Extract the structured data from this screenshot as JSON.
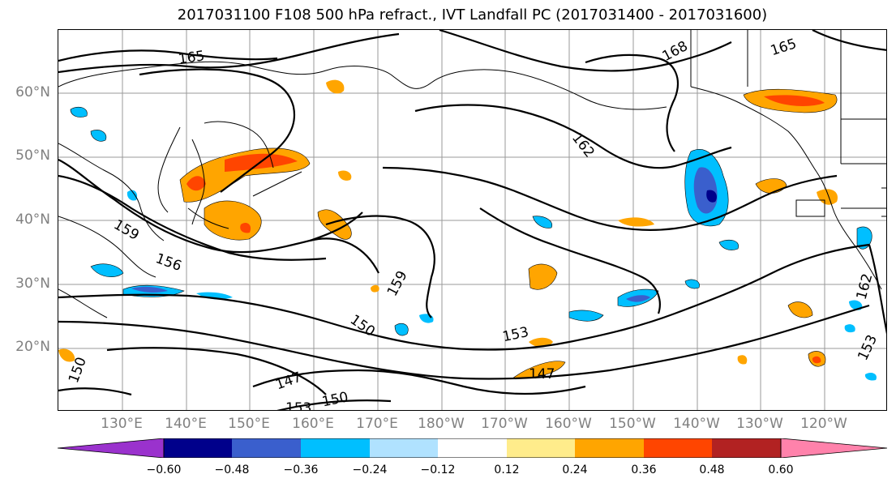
{
  "title": "2017031100 F108 500 hPa refract., IVT Landfall PC (2017031400 - 2017031600)",
  "lat_labels": [
    "60°N",
    "50°N",
    "40°N",
    "30°N",
    "20°N"
  ],
  "lon_labels": [
    "130°E",
    "140°E",
    "150°E",
    "160°E",
    "170°E",
    "180°W",
    "170°W",
    "160°W",
    "150°W",
    "140°W",
    "130°W",
    "120°W"
  ],
  "contour_labels": [
    "165",
    "168",
    "165",
    "162",
    "159",
    "156",
    "159",
    "150",
    "153",
    "147",
    "147",
    "150",
    "153",
    "153",
    "162",
    "150"
  ],
  "colorbar": {
    "ticks": [
      "−0.60",
      "−0.48",
      "−0.36",
      "−0.24",
      "−0.12",
      "0.12",
      "0.24",
      "0.36",
      "0.48",
      "0.60"
    ],
    "colors": [
      "#9a32cd",
      "#00008b",
      "#3a5fcd",
      "#00bfff",
      "#b0e2ff",
      "#ffffff",
      "#ffec8b",
      "#ffa500",
      "#ff4500",
      "#b22222",
      "#ff82ab"
    ]
  }
}
